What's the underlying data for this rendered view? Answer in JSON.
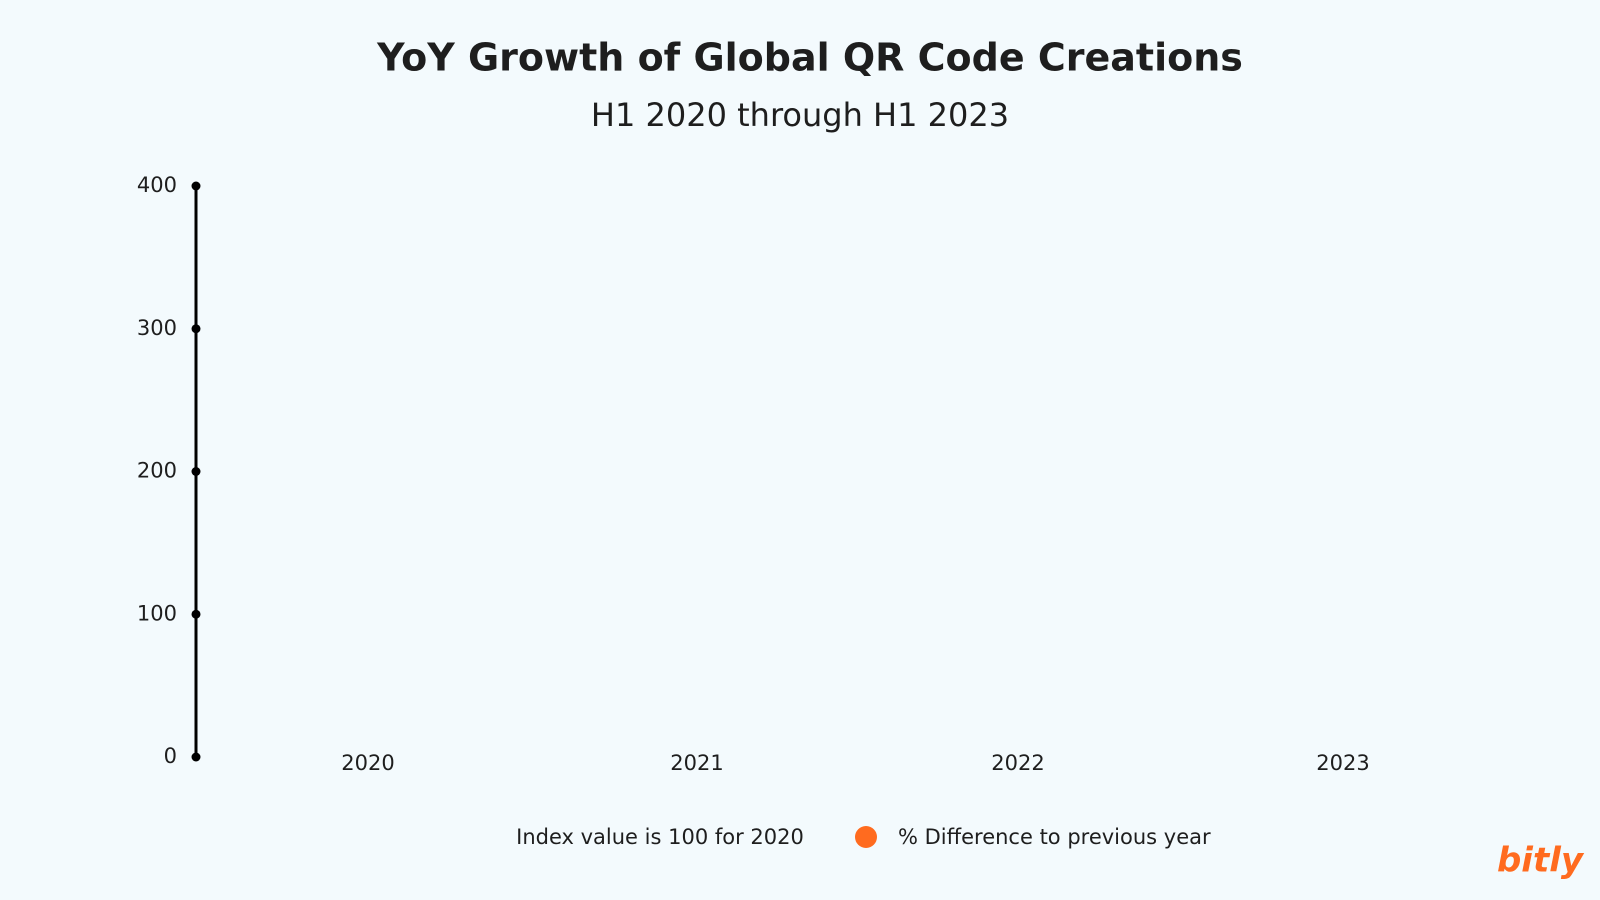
{
  "chart_data": {
    "type": "bar",
    "title": "YoY Growth of Global QR Code Creations",
    "subtitle": "H1 2020 through H1 2023",
    "categories": [
      "2020",
      "2021",
      "2022",
      "2023"
    ],
    "ylim": [
      0,
      400
    ],
    "yticks": [
      0,
      100,
      200,
      300,
      400
    ],
    "grid": false,
    "legend": [
      {
        "label": "Index value is 100 for 2020"
      },
      {
        "label": "% Difference to previous year",
        "color": "#ff6b1f"
      }
    ]
  },
  "brand": "bitly"
}
